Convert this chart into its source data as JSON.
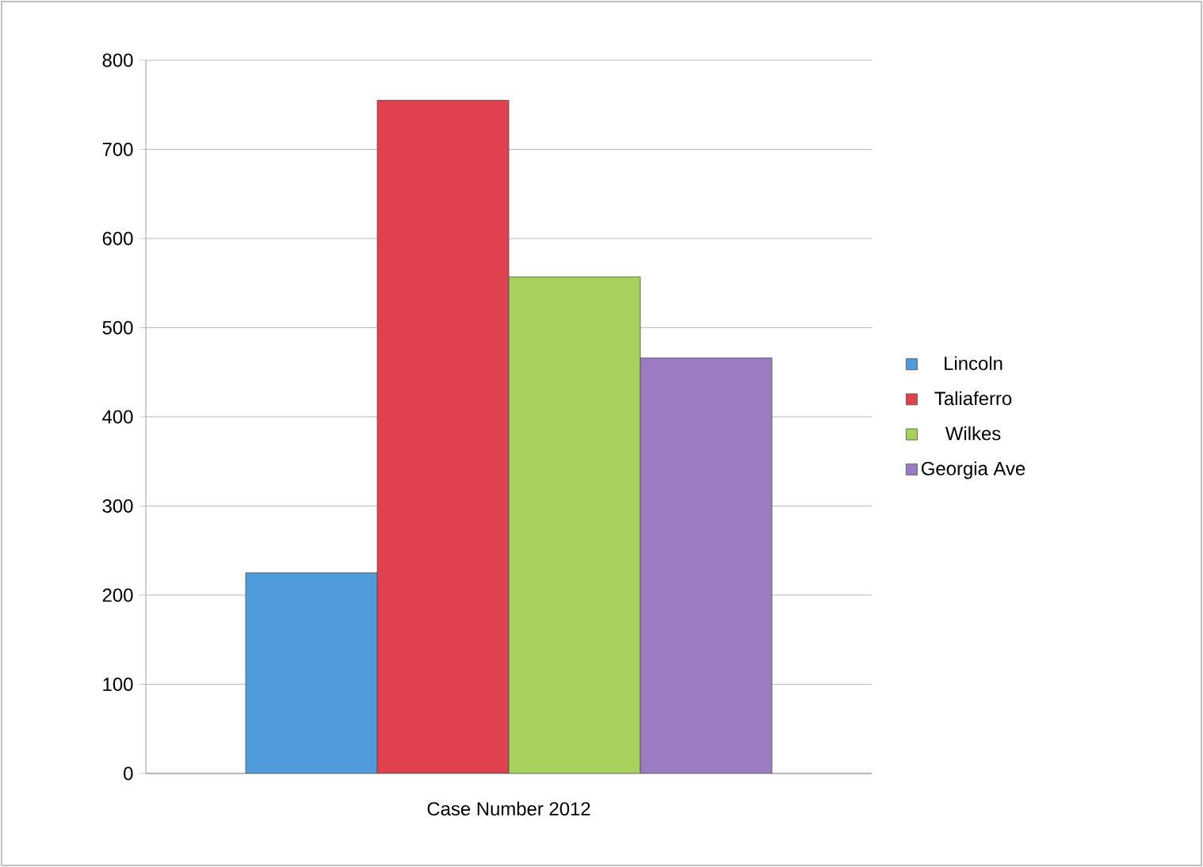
{
  "chart_data": {
    "type": "bar",
    "categories": [
      "Case Number 2012"
    ],
    "series": [
      {
        "name": "Lincoln",
        "color": "#4f9bdc",
        "values": [
          225
        ]
      },
      {
        "name": "Taliaferro",
        "color": "#e0414f",
        "values": [
          755
        ]
      },
      {
        "name": "Wilkes",
        "color": "#a8d05c",
        "values": [
          557
        ]
      },
      {
        "name": "Georgia Ave",
        "color": "#9b7cc2",
        "values": [
          466
        ]
      }
    ],
    "ylim": [
      0,
      800
    ],
    "yticks": [
      0,
      100,
      200,
      300,
      400,
      500,
      600,
      700,
      800
    ],
    "grid": "y",
    "legend": "right"
  }
}
